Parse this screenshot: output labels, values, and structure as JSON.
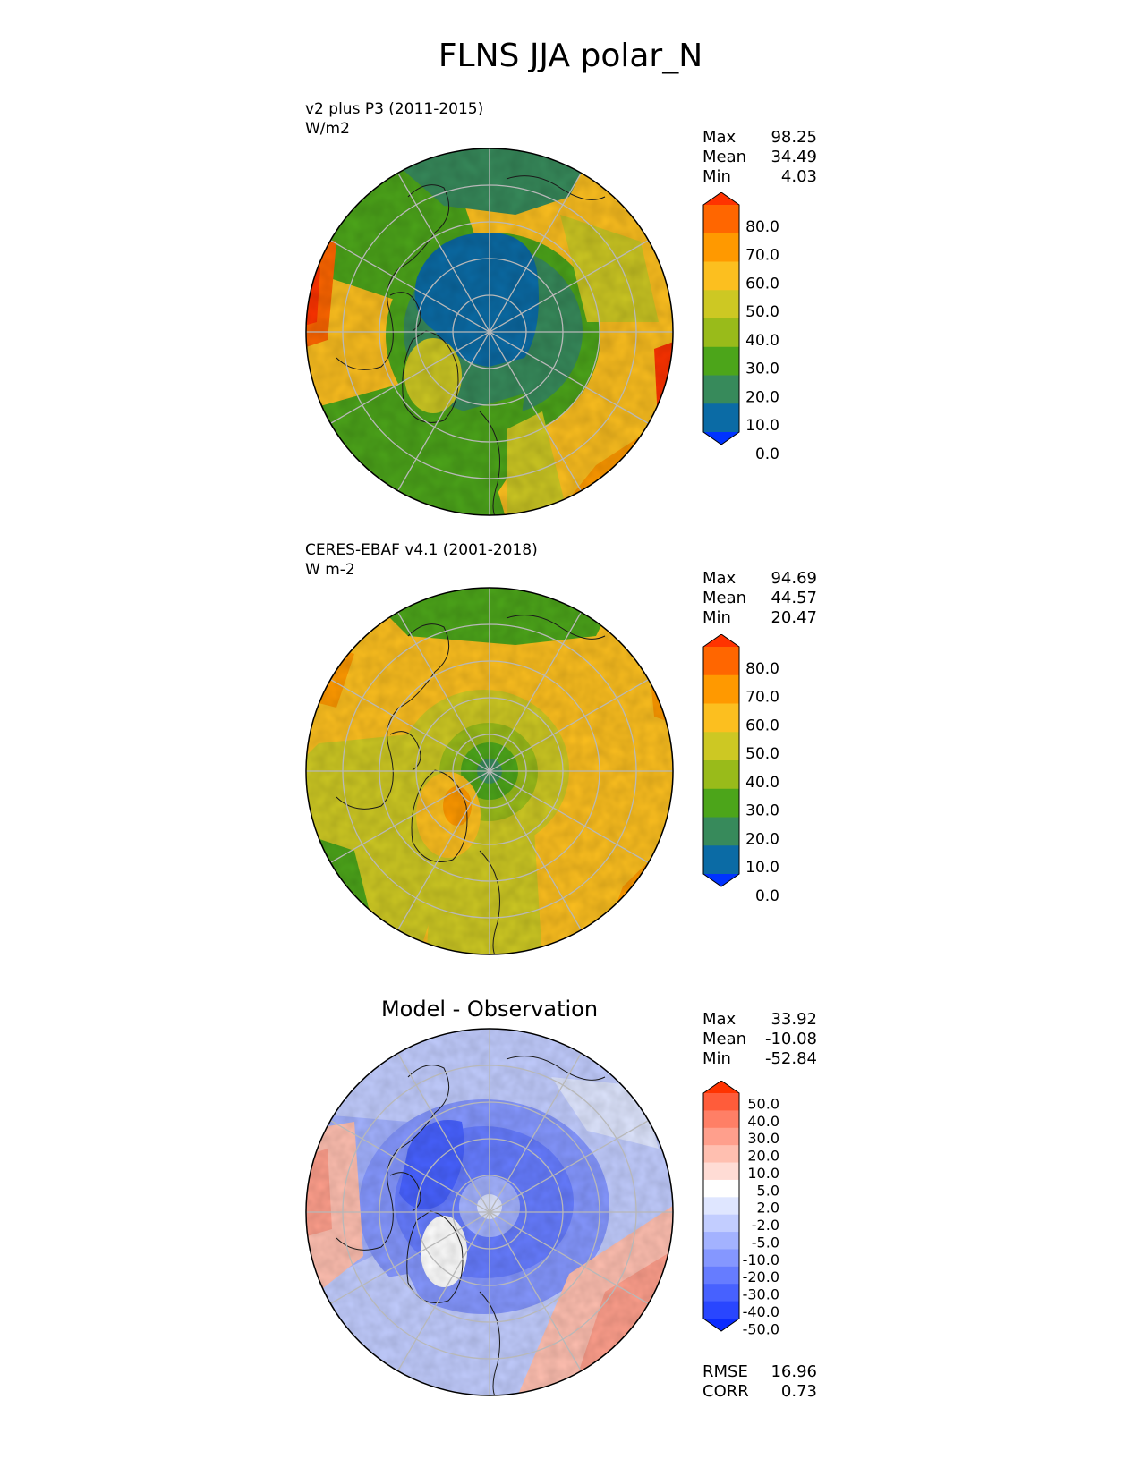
{
  "figure": {
    "title": "FLNS JJA polar_N"
  },
  "panels": [
    {
      "title": "v2 plus P3 (2011-2015)",
      "units": "W/m2",
      "stats": [
        {
          "label": "Max",
          "value": "98.25"
        },
        {
          "label": "Mean",
          "value": "34.49"
        },
        {
          "label": "Min",
          "value": "4.03"
        }
      ],
      "colorbar": {
        "ticks": [
          "80.0",
          "70.0",
          "60.0",
          "50.0",
          "40.0",
          "30.0",
          "20.0",
          "10.0",
          "0.0"
        ],
        "colors": [
          "#ff3300",
          "#ff6600",
          "#ff9900",
          "#fcbf1f",
          "#cdc823",
          "#99bb1a",
          "#4ca51a",
          "#378a5b",
          "#0b6ba5",
          "#0033ff"
        ]
      }
    },
    {
      "title": "CERES-EBAF v4.1 (2001-2018)",
      "units": "W m-2",
      "stats": [
        {
          "label": "Max",
          "value": "94.69"
        },
        {
          "label": "Mean",
          "value": "44.57"
        },
        {
          "label": "Min",
          "value": "20.47"
        }
      ],
      "colorbar": {
        "ticks": [
          "80.0",
          "70.0",
          "60.0",
          "50.0",
          "40.0",
          "30.0",
          "20.0",
          "10.0",
          "0.0"
        ],
        "colors": [
          "#ff3300",
          "#ff6600",
          "#ff9900",
          "#fcbf1f",
          "#cdc823",
          "#99bb1a",
          "#4ca51a",
          "#378a5b",
          "#0b6ba5",
          "#0033ff"
        ]
      }
    },
    {
      "title": "Model - Observation",
      "stats": [
        {
          "label": "Max",
          "value": "33.92"
        },
        {
          "label": "Mean",
          "value": "-10.08"
        },
        {
          "label": "Min",
          "value": "-52.84"
        }
      ],
      "colorbar": {
        "ticks": [
          "50.0",
          "40.0",
          "30.0",
          "20.0",
          "10.0",
          "5.0",
          "2.0",
          "-2.0",
          "-5.0",
          "-10.0",
          "-20.0",
          "-30.0",
          "-40.0",
          "-50.0"
        ],
        "colors": [
          "#ff3300",
          "#ff5c3a",
          "#ff7f66",
          "#ff9f8c",
          "#ffbfb0",
          "#ffdcd5",
          "#ffffff",
          "#dfe6ff",
          "#c2cdff",
          "#a3b2ff",
          "#8597ff",
          "#667cff",
          "#4761ff",
          "#2946ff",
          "#0a2bff"
        ]
      },
      "metrics": [
        {
          "label": "RMSE",
          "value": "16.96"
        },
        {
          "label": "CORR",
          "value": "0.73"
        }
      ]
    }
  ]
}
